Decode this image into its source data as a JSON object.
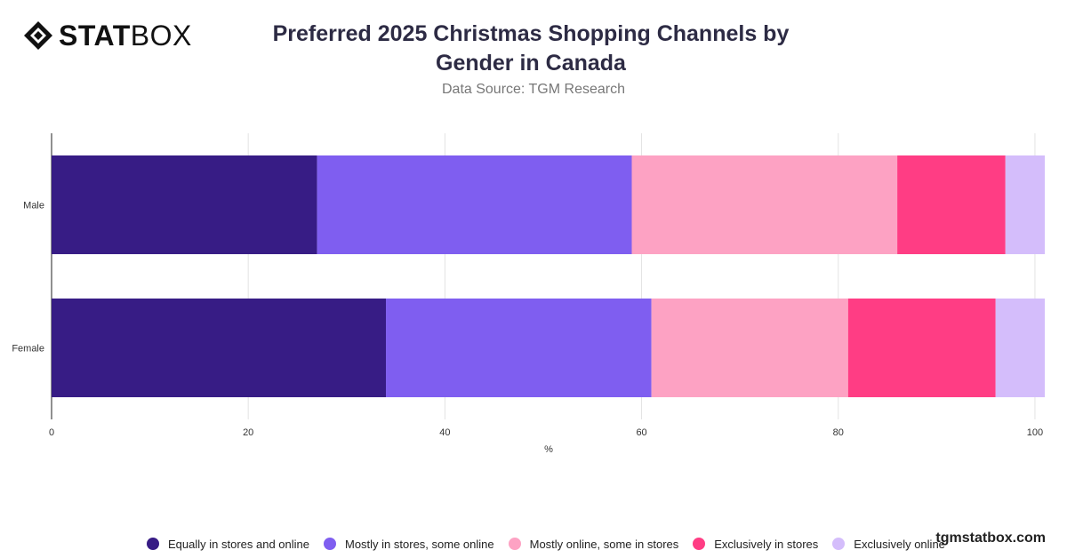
{
  "header": {
    "logo_bold": "STAT",
    "logo_light": "BOX",
    "title_line1": "Preferred 2025 Christmas Shopping Channels by",
    "title_line2": "Gender in Canada",
    "subtitle": "Data Source: TGM Research"
  },
  "footer": {
    "brand": "tgmstatbox.com"
  },
  "chart_data": {
    "type": "bar",
    "orientation": "horizontal",
    "stacked": true,
    "categories": [
      "Male",
      "Female"
    ],
    "xlabel": "%",
    "xlim": [
      0,
      101
    ],
    "x_ticks": [
      0,
      20,
      40,
      60,
      80,
      100
    ],
    "grid": true,
    "legend_position": "bottom",
    "series": [
      {
        "name": "Equally in stores and online",
        "color": "#371c85",
        "values": [
          27,
          34
        ]
      },
      {
        "name": "Mostly in stores, some online",
        "color": "#7f5ef0",
        "values": [
          32,
          27
        ]
      },
      {
        "name": "Mostly online, some in stores",
        "color": "#fda2c3",
        "values": [
          27,
          20
        ]
      },
      {
        "name": "Exclusively in stores",
        "color": "#ff3d84",
        "values": [
          11,
          15
        ]
      },
      {
        "name": "Exclusively online",
        "color": "#d4bdfb",
        "values": [
          4,
          5
        ]
      }
    ]
  }
}
